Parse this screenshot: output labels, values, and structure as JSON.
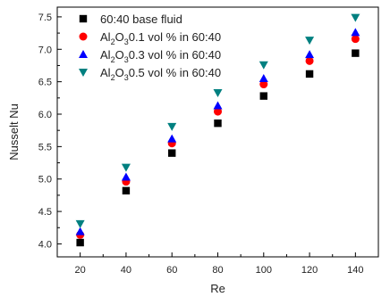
{
  "chart_data": {
    "type": "scatter",
    "xlabel": "Re",
    "ylabel": "Nusselt Nu",
    "xlim": [
      10,
      150
    ],
    "ylim": [
      3.8,
      7.65
    ],
    "x_ticks": [
      20,
      40,
      60,
      80,
      100,
      120,
      140
    ],
    "y_ticks": [
      4.0,
      4.5,
      5.0,
      5.5,
      6.0,
      6.5,
      7.0,
      7.5
    ],
    "legend_position": "top-left",
    "x": [
      20,
      40,
      60,
      80,
      100,
      120,
      140
    ],
    "series": [
      {
        "name": "60:40 base fluid",
        "legend": {
          "pre": "60:40 base fluid",
          "sub1": "",
          "mid": "",
          "sub2": "",
          "post": ""
        },
        "marker": "square",
        "color": "#000000",
        "values": [
          4.02,
          4.82,
          5.4,
          5.86,
          6.28,
          6.62,
          6.94
        ]
      },
      {
        "name": "Al2O3 0.1 vol % in 60:40",
        "legend": {
          "pre": "Al",
          "sub1": "2",
          "mid": "O",
          "sub2": "3",
          "post": "0.1 vol % in 60:40"
        },
        "marker": "circle",
        "color": "#ff0000",
        "values": [
          4.14,
          4.96,
          5.55,
          6.04,
          6.46,
          6.82,
          7.16
        ]
      },
      {
        "name": "Al2O3 0.3 vol % in 60:40",
        "legend": {
          "pre": "Al",
          "sub1": "2",
          "mid": "O",
          "sub2": "3",
          "post": "0.3 vol % in 60:40"
        },
        "marker": "triangle-up",
        "color": "#0000ff",
        "values": [
          4.19,
          5.03,
          5.62,
          6.13,
          6.55,
          6.92,
          7.26
        ]
      },
      {
        "name": "Al2O3 0.5 vol % in 60:40",
        "legend": {
          "pre": "Al",
          "sub1": "2",
          "mid": "O",
          "sub2": "3",
          "post": "0.5 vol % in 60:40"
        },
        "marker": "triangle-down",
        "color": "#008080",
        "values": [
          4.31,
          5.18,
          5.81,
          6.33,
          6.76,
          7.14,
          7.49
        ]
      }
    ]
  }
}
